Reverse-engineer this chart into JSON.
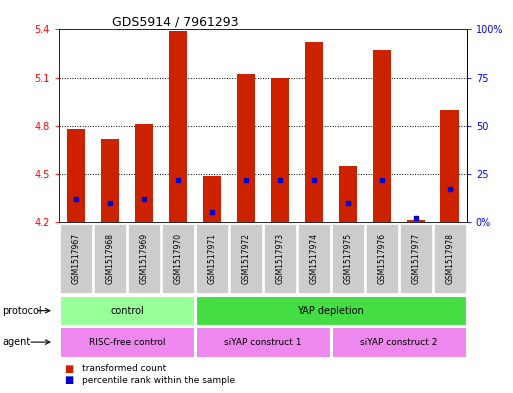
{
  "title": "GDS5914 / 7961293",
  "samples": [
    "GSM1517967",
    "GSM1517968",
    "GSM1517969",
    "GSM1517970",
    "GSM1517971",
    "GSM1517972",
    "GSM1517973",
    "GSM1517974",
    "GSM1517975",
    "GSM1517976",
    "GSM1517977",
    "GSM1517978"
  ],
  "transformed_count": [
    4.78,
    4.72,
    4.81,
    5.39,
    4.49,
    5.12,
    5.1,
    5.32,
    4.55,
    5.27,
    4.21,
    4.9
  ],
  "percentile_rank": [
    12,
    10,
    12,
    22,
    5,
    22,
    22,
    22,
    10,
    22,
    2,
    17
  ],
  "ymin": 4.2,
  "ymax": 5.4,
  "yticks_left": [
    4.2,
    4.5,
    4.8,
    5.1,
    5.4
  ],
  "yticks_right": [
    0,
    25,
    50,
    75,
    100
  ],
  "bar_color": "#cc2200",
  "dot_color": "#0000cc",
  "background_color": "#ffffff",
  "grid_color": "#000000",
  "grid_lines": [
    4.5,
    4.8,
    5.1
  ],
  "protocol_groups": [
    {
      "label": "control",
      "start": 0,
      "end": 3,
      "color": "#99ff99"
    },
    {
      "label": "YAP depletion",
      "start": 4,
      "end": 11,
      "color": "#44dd44"
    }
  ],
  "agent_groups": [
    {
      "label": "RISC-free control",
      "start": 0,
      "end": 3,
      "color": "#ee88ee"
    },
    {
      "label": "siYAP construct 1",
      "start": 4,
      "end": 7,
      "color": "#ee88ee"
    },
    {
      "label": "siYAP construct 2",
      "start": 8,
      "end": 11,
      "color": "#ee88ee"
    }
  ],
  "xtick_bg_color": "#cccccc",
  "legend_square_color_1": "#cc2200",
  "legend_square_color_2": "#0000cc",
  "legend_label_1": "transformed count",
  "legend_label_2": "percentile rank within the sample",
  "row_label_protocol": "protocol",
  "row_label_agent": "agent"
}
